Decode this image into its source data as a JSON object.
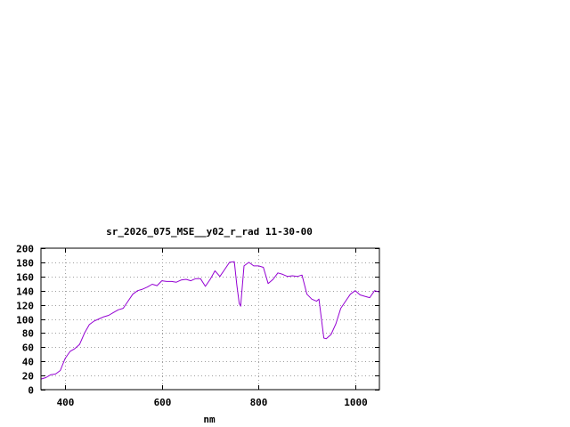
{
  "chart_data": {
    "type": "line",
    "title": "sr_2026_075_MSE__y02_r_rad 11-30-00",
    "xlabel": "nm",
    "ylabel": "",
    "xlim": [
      350,
      1050
    ],
    "ylim": [
      0,
      200
    ],
    "xticks": [
      400,
      600,
      800,
      1000
    ],
    "yticks": [
      0,
      20,
      40,
      60,
      80,
      100,
      120,
      140,
      160,
      180,
      200
    ],
    "grid": true,
    "line_color": "#9400d3",
    "series": [
      {
        "x": [
          350,
          360,
          370,
          380,
          390,
          400,
          410,
          420,
          430,
          440,
          450,
          460,
          470,
          480,
          490,
          500,
          510,
          520,
          530,
          540,
          550,
          560,
          570,
          580,
          590,
          600,
          610,
          620,
          630,
          640,
          650,
          660,
          670,
          680,
          690,
          700,
          710,
          720,
          730,
          740,
          750,
          755,
          760,
          763,
          770,
          780,
          790,
          800,
          810,
          820,
          830,
          840,
          850,
          860,
          870,
          880,
          890,
          900,
          910,
          920,
          925,
          930,
          935,
          940,
          950,
          960,
          970,
          980,
          990,
          1000,
          1010,
          1020,
          1030,
          1040,
          1050
        ],
        "y": [
          15,
          17,
          21,
          22,
          27,
          44,
          54,
          58,
          64,
          80,
          92,
          97,
          100,
          103,
          105,
          109,
          113,
          115,
          125,
          135,
          140,
          142,
          145,
          149,
          147,
          154,
          153,
          153,
          152,
          155,
          156,
          154,
          157,
          157,
          146,
          156,
          168,
          160,
          170,
          180,
          181,
          148,
          122,
          118,
          175,
          180,
          175,
          175,
          173,
          150,
          156,
          165,
          163,
          160,
          161,
          160,
          162,
          135,
          128,
          125,
          128,
          100,
          73,
          72,
          78,
          93,
          115,
          125,
          135,
          140,
          134,
          132,
          130,
          140,
          138
        ]
      }
    ]
  }
}
